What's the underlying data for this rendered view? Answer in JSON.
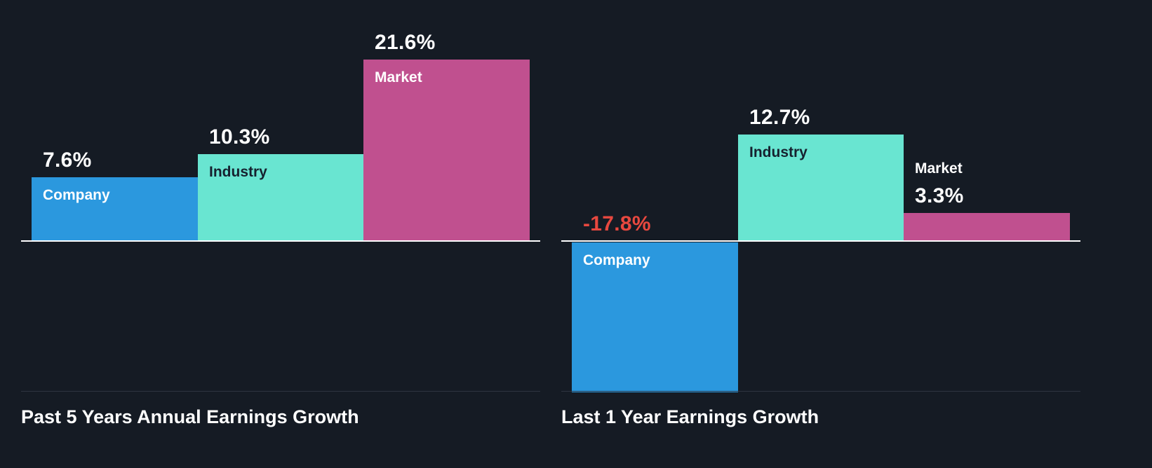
{
  "colors": {
    "background": "#151b24",
    "baseline": "#ffffff",
    "divider": "#2e3540",
    "title_text": "#ffffff",
    "company_bar": "#2b98de",
    "industry_bar": "#69e5d1",
    "market_bar": "#c0508f",
    "negative_value_text": "#e8483f",
    "dark_label_text": "#16212f"
  },
  "chart_data": [
    {
      "type": "bar",
      "title": "Past 5 Years Annual Earnings Growth",
      "unit": "%",
      "baseline_value": 0,
      "legend_position": "none",
      "grid": false,
      "categories": [
        "Company",
        "Industry",
        "Market"
      ],
      "values": [
        7.6,
        10.3,
        21.6
      ],
      "bars": [
        {
          "category": "Company",
          "value": 7.6,
          "value_label": "7.6%",
          "bar_color": "#2b98de",
          "category_color": "#ffffff",
          "value_color": "#ffffff",
          "category_position": "inside"
        },
        {
          "category": "Industry",
          "value": 10.3,
          "value_label": "10.3%",
          "bar_color": "#69e5d1",
          "category_color": "#16212f",
          "value_color": "#ffffff",
          "category_position": "inside"
        },
        {
          "category": "Market",
          "value": 21.6,
          "value_label": "21.6%",
          "bar_color": "#c0508f",
          "category_color": "#ffffff",
          "value_color": "#ffffff",
          "category_position": "inside"
        }
      ]
    },
    {
      "type": "bar",
      "title": "Last 1 Year Earnings Growth",
      "unit": "%",
      "baseline_value": 0,
      "legend_position": "none",
      "grid": false,
      "categories": [
        "Company",
        "Industry",
        "Market"
      ],
      "values": [
        -17.8,
        12.7,
        3.3
      ],
      "bars": [
        {
          "category": "Company",
          "value": -17.8,
          "value_label": "-17.8%",
          "bar_color": "#2b98de",
          "category_color": "#ffffff",
          "value_color": "#e8483f",
          "category_position": "inside"
        },
        {
          "category": "Industry",
          "value": 12.7,
          "value_label": "12.7%",
          "bar_color": "#69e5d1",
          "category_color": "#16212f",
          "value_color": "#ffffff",
          "category_position": "inside"
        },
        {
          "category": "Market",
          "value": 3.3,
          "value_label": "3.3%",
          "bar_color": "#c0508f",
          "category_color": "#ffffff",
          "value_color": "#ffffff",
          "category_position": "above"
        }
      ]
    }
  ]
}
